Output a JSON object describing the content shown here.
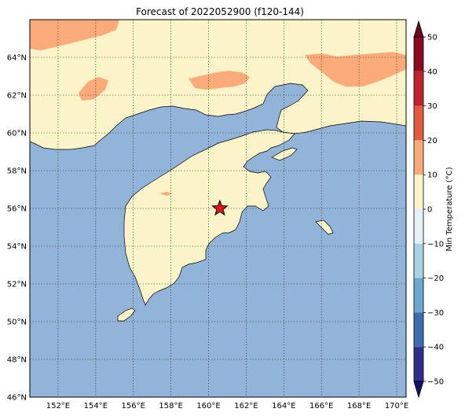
{
  "map": {
    "title": "Forecast of 2022052900 (f120-144)",
    "lon_range": [
      150.5,
      170.5
    ],
    "lat_range": [
      46,
      66
    ],
    "lat_ticks": [
      "46°N",
      "48°N",
      "50°N",
      "52°N",
      "54°N",
      "56°N",
      "58°N",
      "60°N",
      "62°N",
      "64°N"
    ],
    "lat_values": [
      46,
      48,
      50,
      52,
      54,
      56,
      58,
      60,
      62,
      64
    ],
    "lon_ticks": [
      "152°E",
      "154°E",
      "156°E",
      "158°E",
      "160°E",
      "162°E",
      "164°E",
      "166°E",
      "168°E",
      "170°E"
    ],
    "lon_values": [
      152,
      154,
      156,
      158,
      160,
      162,
      164,
      166,
      168,
      170
    ],
    "marker": {
      "label": "star-marker",
      "lon": 160.6,
      "lat": 56.0,
      "color": "#e8141c"
    },
    "colors": {
      "ocean": "#92b4d8",
      "land_0_10": "#fbf4c8",
      "warm_10_20": "#fbab79",
      "gridline": "#333333"
    }
  },
  "colorbar": {
    "label": "Min Temperature (°C)",
    "ticks": [
      "50",
      "40",
      "30",
      "20",
      "10",
      "0",
      "−10",
      "−20",
      "−30",
      "−40",
      "−50"
    ],
    "tick_values": [
      50,
      40,
      30,
      20,
      10,
      0,
      -10,
      -20,
      -30,
      -40,
      -50
    ],
    "bins": [
      {
        "from": 40,
        "to": 50,
        "color": "#8b0b23"
      },
      {
        "from": 30,
        "to": 40,
        "color": "#c1222d"
      },
      {
        "from": 20,
        "to": 30,
        "color": "#e55a3f"
      },
      {
        "from": 10,
        "to": 20,
        "color": "#fbab79"
      },
      {
        "from": 0,
        "to": 10,
        "color": "#fbf4c8"
      },
      {
        "from": -10,
        "to": 0,
        "color": "#e3f2f7"
      },
      {
        "from": -20,
        "to": -10,
        "color": "#a7d3e5"
      },
      {
        "from": -30,
        "to": -20,
        "color": "#69a9d0"
      },
      {
        "from": -40,
        "to": -30,
        "color": "#3b6eb0"
      },
      {
        "from": -50,
        "to": -40,
        "color": "#2e2f8c"
      }
    ],
    "extend_top_color": "#6d0b1d",
    "extend_bottom_color": "#13136b"
  }
}
